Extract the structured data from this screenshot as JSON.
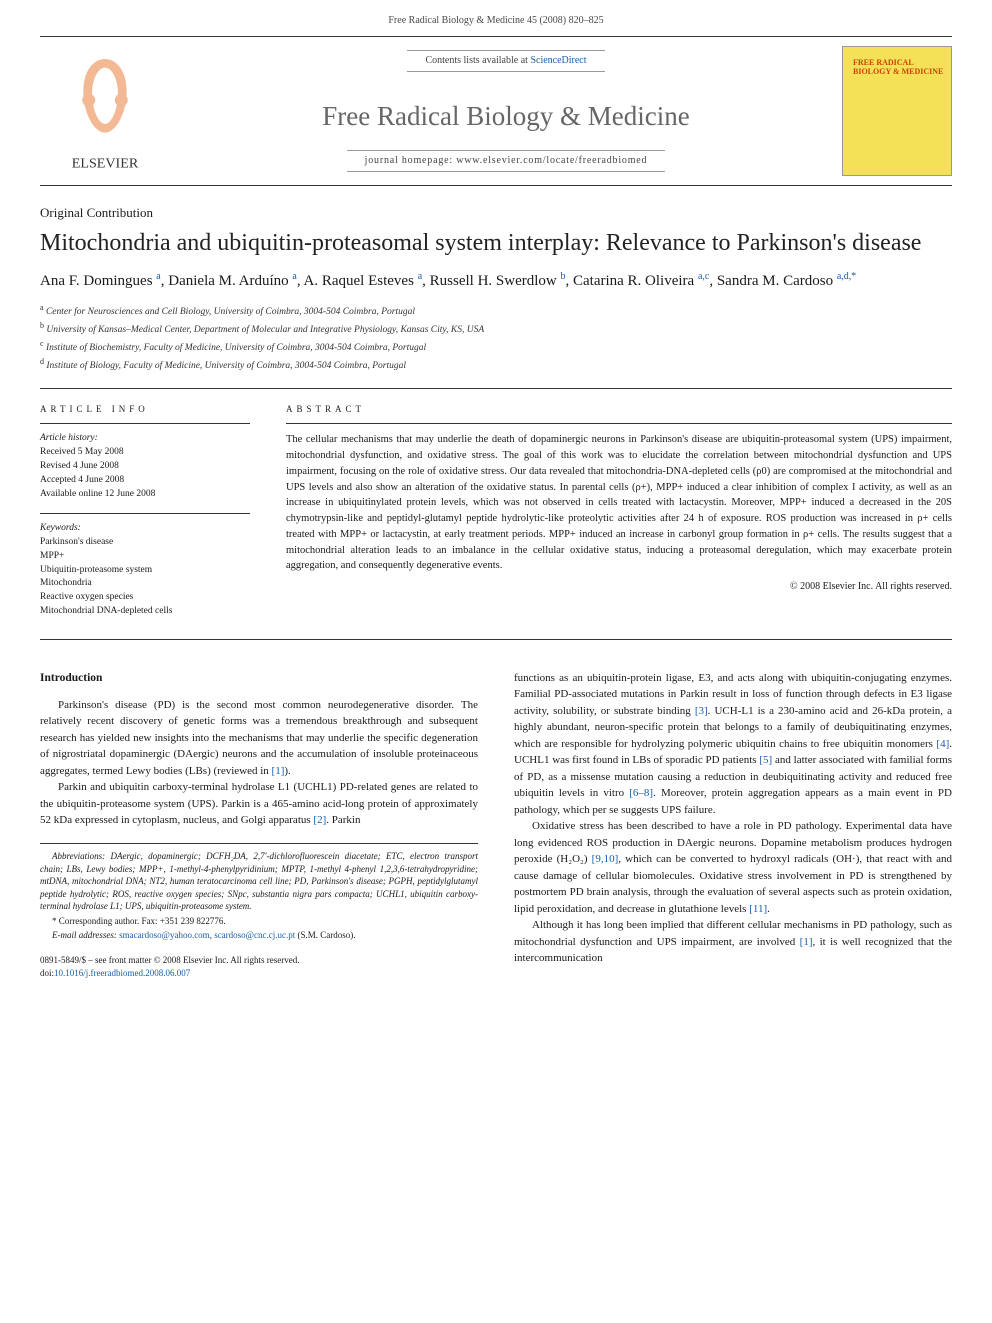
{
  "header": {
    "citation": "Free Radical Biology & Medicine 45 (2008) 820–825"
  },
  "banner": {
    "contents_text": "Contents lists available at ",
    "contents_link": "ScienceDirect",
    "journal_name": "Free Radical Biology & Medicine",
    "homepage": "journal homepage: www.elsevier.com/locate/freeradbiomed",
    "cover_label": "FREE RADICAL BIOLOGY & MEDICINE",
    "publisher": "ELSEVIER"
  },
  "article": {
    "type": "Original Contribution",
    "title": "Mitochondria and ubiquitin-proteasomal system interplay: Relevance to Parkinson's disease",
    "authors": "Ana F. Domingues <sup>a</sup>, Daniela M. Arduíno <sup>a</sup>, A. Raquel Esteves <sup>a</sup>, Russell H. Swerdlow <sup>b</sup>, Catarina R. Oliveira <sup>a,c</sup>, Sandra M. Cardoso <sup>a,d,*</sup>",
    "affiliations": [
      "<sup>a</sup> Center for Neurosciences and Cell Biology, University of Coimbra, 3004-504 Coimbra, Portugal",
      "<sup>b</sup> University of Kansas–Medical Center, Department of Molecular and Integrative Physiology, Kansas City, KS, USA",
      "<sup>c</sup> Institute of Biochemistry, Faculty of Medicine, University of Coimbra, 3004-504 Coimbra, Portugal",
      "<sup>d</sup> Institute of Biology, Faculty of Medicine, University of Coimbra, 3004-504 Coimbra, Portugal"
    ]
  },
  "info": {
    "heading": "ARTICLE INFO",
    "history_label": "Article history:",
    "history": [
      "Received 5 May 2008",
      "Revised 4 June 2008",
      "Accepted 4 June 2008",
      "Available online 12 June 2008"
    ],
    "keywords_label": "Keywords:",
    "keywords": [
      "Parkinson's disease",
      "MPP+",
      "Ubiquitin-proteasome system",
      "Mitochondria",
      "Reactive oxygen species",
      "Mitochondrial DNA-depleted cells"
    ]
  },
  "abstract": {
    "heading": "ABSTRACT",
    "text": "The cellular mechanisms that may underlie the death of dopaminergic neurons in Parkinson's disease are ubiquitin-proteasomal system (UPS) impairment, mitochondrial dysfunction, and oxidative stress. The goal of this work was to elucidate the correlation between mitochondrial dysfunction and UPS impairment, focusing on the role of oxidative stress. Our data revealed that mitochondria-DNA-depleted cells (ρ0) are compromised at the mitochondrial and UPS levels and also show an alteration of the oxidative status. In parental cells (ρ+), MPP+ induced a clear inhibition of complex I activity, as well as an increase in ubiquitinylated protein levels, which was not observed in cells treated with lactacystin. Moreover, MPP+ induced a decreased in the 20S chymotrypsin-like and peptidyl-glutamyl peptide hydrolytic-like proteolytic activities after 24 h of exposure. ROS production was increased in ρ+ cells treated with MPP+ or lactacystin, at early treatment periods. MPP+ induced an increase in carbonyl group formation in ρ+ cells. The results suggest that a mitochondrial alteration leads to an imbalance in the cellular oxidative status, inducing a proteasomal deregulation, which may exacerbate protein aggregation, and consequently degenerative events.",
    "copyright": "© 2008 Elsevier Inc. All rights reserved."
  },
  "body": {
    "intro_heading": "Introduction",
    "left_paragraphs": [
      "Parkinson's disease (PD) is the second most common neurode­generative disorder. The relatively recent discovery of genetic forms was a tremendous breakthrough and subsequent research has yielded new insights into the mechanisms that may underlie the specific degeneration of nigrostriatal dopaminergic (DAergic) neurons and the accumulation of insoluble proteinaceous aggregates, termed Lewy bodies (LBs) (reviewed in <a class='link' href='#'>[1]</a>).",
      "Parkin and ubiquitin carboxy-terminal hydrolase L1 (UCHL1) PD-related genes are related to the ubiquitin-proteasome system (UPS). Parkin is a 465-amino acid-long protein of approximately 52 kDa expressed in cytoplasm, nucleus, and Golgi apparatus <a class='link' href='#'>[2]</a>. Parkin"
    ],
    "right_paragraphs": [
      "functions as an ubiquitin-protein ligase, E3, and acts along with ubiquitin-conjugating enzymes. Familial PD-associated mutations in Parkin result in loss of function through defects in E3 ligase activity, solubility, or substrate binding <a class='link' href='#'>[3]</a>. UCH-L1 is a 230-amino acid and 26-kDa protein, a highly abundant, neuron-specific protein that belongs to a family of deubiquitinating enzymes, which are responsible for hydrolyzing polymeric ubiquitin chains to free ubiquitin monomers <a class='link' href='#'>[4]</a>. UCHL1 was first found in LBs of sporadic PD patients <a class='link' href='#'>[5]</a> and latter associated with familial forms of PD, as a missense mutation causing a reduction in deubiquitinating activity and reduced free ubiquitin levels in vitro <a class='link' href='#'>[6–8]</a>. Moreover, protein aggregation appears as a main event in PD pathology, which per se suggests UPS failure.",
      "Oxidative stress has been described to have a role in PD pathology. Experimental data have long evidenced ROS production in DAergic neurons. Dopamine metabolism produces hydrogen peroxide (H₂O₂) <a class='link' href='#'>[9,10]</a>, which can be converted to hydroxyl radicals (OH·), that react with and cause damage of cellular biomolecules. Oxidative stress involvement in PD is strengthened by postmortem PD brain analysis, through the evaluation of several aspects such as protein oxidation, lipid peroxidation, and decrease in glutathione levels <a class='link' href='#'>[11]</a>.",
      "Although it has long been implied that different cellular mechanisms in PD pathology, such as mitochondrial dysfunction and UPS impair­ment, are involved <a class='link' href='#'>[1]</a>, it is well recognized that the intercommunication"
    ]
  },
  "footnotes": {
    "abbrev": "Abbreviations: DAergic, dopaminergic; DCFH₂DA, 2,7′-dichlorofluorescein diace­tate; ETC, electron transport chain; LBs, Lewy bodies; MPP+, 1-methyl-4-phenylpyr­idinium; MPTP, 1-methyl 4-phenyl 1,2,3,6-tetrahydropyridine; mtDNA, mitochondrial DNA; NT2, human teratocarcinoma cell line; PD, Parkinson's disease; PGPH, peptidyl­glutamyl peptide hydrolytic; ROS, reactive oxygen species; SNpc, substantia nigra pars compacta; UCHL1, ubiquitin carboxy-terminal hydrolase L1; UPS, ubiquitin-proteasome system.",
    "corresponding": "* Corresponding author. Fax: +351 239 822776.",
    "email_label": "E-mail addresses: ",
    "email1": "smacardoso@yahoo.com",
    "email_sep": ", ",
    "email2": "scardoso@cnc.cj.uc.pt",
    "email_suffix": " (S.M. Cardoso)."
  },
  "frontmatter": {
    "line1": "0891-5849/$ – see front matter © 2008 Elsevier Inc. All rights reserved.",
    "doi_label": "doi:",
    "doi": "10.1016/j.freeradbiomed.2008.06.007"
  },
  "colors": {
    "link": "#1a5da8",
    "text": "#1a1a1a",
    "journal_title": "#666666",
    "cover_bg": "#f5e158",
    "cover_text": "#cc4400",
    "elsevier_orange": "#e8762d"
  }
}
